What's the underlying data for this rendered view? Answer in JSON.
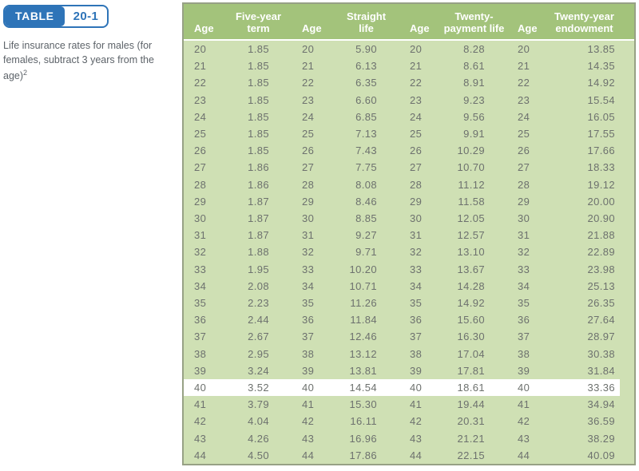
{
  "badge": {
    "label": "TABLE",
    "number": "20-1"
  },
  "caption": {
    "text": "Life insurance rates for males (for females, subtract 3 years from the age)",
    "footnote": "2"
  },
  "table": {
    "headers": [
      "Age",
      "Five-year\nterm",
      "Age",
      "Straight\nlife",
      "Age",
      "Twenty-\npayment life",
      "Age",
      "Twenty-year\nendowment"
    ],
    "highlighted_age": "40",
    "rows": [
      [
        "20",
        "1.85",
        "20",
        "5.90",
        "20",
        "8.28",
        "20",
        "13.85"
      ],
      [
        "21",
        "1.85",
        "21",
        "6.13",
        "21",
        "8.61",
        "21",
        "14.35"
      ],
      [
        "22",
        "1.85",
        "22",
        "6.35",
        "22",
        "8.91",
        "22",
        "14.92"
      ],
      [
        "23",
        "1.85",
        "23",
        "6.60",
        "23",
        "9.23",
        "23",
        "15.54"
      ],
      [
        "24",
        "1.85",
        "24",
        "6.85",
        "24",
        "9.56",
        "24",
        "16.05"
      ],
      [
        "25",
        "1.85",
        "25",
        "7.13",
        "25",
        "9.91",
        "25",
        "17.55"
      ],
      [
        "26",
        "1.85",
        "26",
        "7.43",
        "26",
        "10.29",
        "26",
        "17.66"
      ],
      [
        "27",
        "1.86",
        "27",
        "7.75",
        "27",
        "10.70",
        "27",
        "18.33"
      ],
      [
        "28",
        "1.86",
        "28",
        "8.08",
        "28",
        "11.12",
        "28",
        "19.12"
      ],
      [
        "29",
        "1.87",
        "29",
        "8.46",
        "29",
        "11.58",
        "29",
        "20.00"
      ],
      [
        "30",
        "1.87",
        "30",
        "8.85",
        "30",
        "12.05",
        "30",
        "20.90"
      ],
      [
        "31",
        "1.87",
        "31",
        "9.27",
        "31",
        "12.57",
        "31",
        "21.88"
      ],
      [
        "32",
        "1.88",
        "32",
        "9.71",
        "32",
        "13.10",
        "32",
        "22.89"
      ],
      [
        "33",
        "1.95",
        "33",
        "10.20",
        "33",
        "13.67",
        "33",
        "23.98"
      ],
      [
        "34",
        "2.08",
        "34",
        "10.71",
        "34",
        "14.28",
        "34",
        "25.13"
      ],
      [
        "35",
        "2.23",
        "35",
        "11.26",
        "35",
        "14.92",
        "35",
        "26.35"
      ],
      [
        "36",
        "2.44",
        "36",
        "11.84",
        "36",
        "15.60",
        "36",
        "27.64"
      ],
      [
        "37",
        "2.67",
        "37",
        "12.46",
        "37",
        "16.30",
        "37",
        "28.97"
      ],
      [
        "38",
        "2.95",
        "38",
        "13.12",
        "38",
        "17.04",
        "38",
        "30.38"
      ],
      [
        "39",
        "3.24",
        "39",
        "13.81",
        "39",
        "17.81",
        "39",
        "31.84"
      ],
      [
        "40",
        "3.52",
        "40",
        "14.54",
        "40",
        "18.61",
        "40",
        "33.36"
      ],
      [
        "41",
        "3.79",
        "41",
        "15.30",
        "41",
        "19.44",
        "41",
        "34.94"
      ],
      [
        "42",
        "4.04",
        "42",
        "16.11",
        "42",
        "20.31",
        "42",
        "36.59"
      ],
      [
        "43",
        "4.26",
        "43",
        "16.96",
        "43",
        "21.21",
        "43",
        "38.29"
      ],
      [
        "44",
        "4.50",
        "44",
        "17.86",
        "44",
        "22.15",
        "44",
        "40.09"
      ]
    ]
  },
  "colors": {
    "accent_blue": "#2e74b8",
    "header_green": "#a3c37b",
    "body_green": "#cfe0b4",
    "border_green": "#97a185",
    "text_gray": "#6d716e",
    "highlight_row": "#ffffff"
  }
}
